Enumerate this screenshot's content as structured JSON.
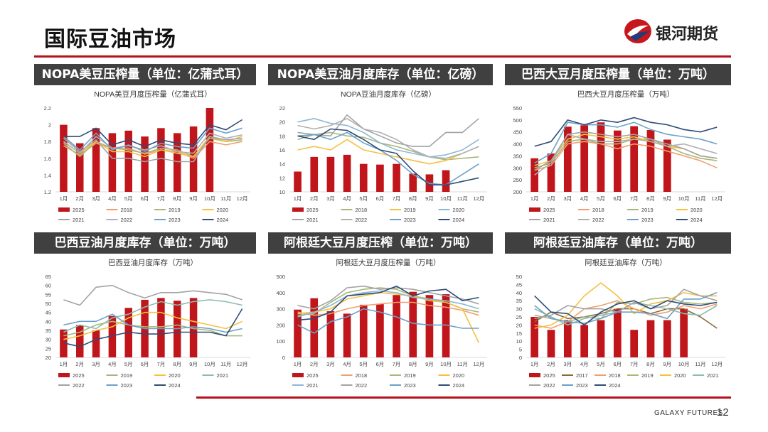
{
  "page": {
    "title": "国际豆油市场",
    "brand": "银河期货",
    "footer_brand": "GALAXY FUTURES",
    "page_number": "12"
  },
  "colors": {
    "accent": "#b5121b",
    "header_bg": "#404040"
  },
  "panels": [
    {
      "id": "nopa-crush",
      "header": "NOPA美豆压榨量（单位：亿蒲式耳）"
    },
    {
      "id": "nopa-oil-stock",
      "header": "NOPA美豆油月度库存（单位：亿磅）"
    },
    {
      "id": "brazil-crush",
      "header": "巴西大豆月度压榨量（单位：万吨）"
    },
    {
      "id": "brazil-oil-stock",
      "header": "巴西豆油月度库存（单位：万吨）"
    },
    {
      "id": "argentina-crush",
      "header": "阿根廷大豆月度压榨（单位：万吨）"
    },
    {
      "id": "argentina-oil-stock",
      "header": "阿根廷豆油库存（单位：万吨）"
    }
  ],
  "chart_data": [
    {
      "type": "bar",
      "title": "NOPA美豆月度压榨量（亿蒲式耳）",
      "categories": [
        "1月",
        "2月",
        "3月",
        "4月",
        "5月",
        "6月",
        "7月",
        "8月",
        "9月",
        "10月",
        "11月",
        "12月"
      ],
      "ylim": [
        1.2,
        2.2
      ],
      "yticks": [
        1.2,
        1.4,
        1.6,
        1.8,
        2.0,
        2.2
      ],
      "legend_cols": 4,
      "bar_series": {
        "name": "2025",
        "values": [
          2.0,
          1.78,
          1.96,
          1.9,
          1.93,
          1.86,
          1.96,
          1.9,
          1.98,
          2.2,
          null,
          null
        ]
      },
      "series": [
        {
          "name": "2018",
          "color": "#f0a070",
          "values": [
            1.75,
            1.64,
            1.78,
            1.72,
            1.72,
            1.65,
            1.7,
            1.68,
            1.6,
            1.8,
            1.76,
            1.8
          ]
        },
        {
          "name": "2019",
          "color": "#a8b878",
          "values": [
            1.78,
            1.62,
            1.8,
            1.72,
            1.7,
            1.66,
            1.72,
            1.7,
            1.62,
            1.84,
            1.8,
            1.82
          ]
        },
        {
          "name": "2020",
          "color": "#f5c040",
          "values": [
            1.8,
            1.66,
            1.8,
            1.68,
            1.68,
            1.62,
            1.7,
            1.66,
            1.62,
            1.86,
            1.8,
            1.86
          ]
        },
        {
          "name": "2021",
          "color": "#a3a3a3",
          "values": [
            1.84,
            1.68,
            1.82,
            1.6,
            1.6,
            1.56,
            1.6,
            1.56,
            1.56,
            1.86,
            1.82,
            1.84
          ]
        },
        {
          "name": "2022",
          "color": "#b0b0b0",
          "values": [
            1.8,
            1.66,
            1.86,
            1.72,
            1.75,
            1.7,
            1.75,
            1.68,
            1.66,
            1.9,
            1.84,
            1.88
          ]
        },
        {
          "name": "2023",
          "color": "#6da0c8",
          "values": [
            1.86,
            1.7,
            1.9,
            1.7,
            1.76,
            1.68,
            1.78,
            1.74,
            1.72,
            1.96,
            1.9,
            1.96
          ]
        },
        {
          "name": "2024",
          "color": "#2e4c78",
          "values": [
            1.86,
            1.86,
            1.96,
            1.76,
            1.82,
            1.74,
            1.82,
            1.78,
            1.76,
            2.0,
            1.94,
            2.06
          ]
        }
      ]
    },
    {
      "type": "bar",
      "title": "NOPA豆油月度库存（亿磅）",
      "categories": [
        "1月",
        "2月",
        "3月",
        "4月",
        "5月",
        "6月",
        "7月",
        "8月",
        "9月",
        "10月",
        "11月",
        "12月"
      ],
      "ylim": [
        10,
        22
      ],
      "yticks": [
        10,
        12,
        14,
        16,
        18,
        20,
        22
      ],
      "legend_cols": 4,
      "bar_series": {
        "name": "2025",
        "values": [
          12.9,
          15.0,
          15.0,
          15.3,
          14.0,
          13.9,
          14.0,
          12.6,
          12.5,
          13.1,
          null,
          null
        ]
      },
      "series": [
        {
          "name": "2018",
          "color": "#a8b878",
          "values": [
            17.5,
            18.2,
            18.5,
            18.0,
            17.8,
            17.0,
            16.5,
            15.8,
            15.0,
            14.6,
            14.8,
            15.0
          ]
        },
        {
          "name": "2019",
          "color": "#f5c040",
          "values": [
            16.0,
            16.5,
            16.0,
            17.5,
            16.0,
            15.5,
            15.0,
            14.5,
            14.0,
            14.5,
            15.5,
            16.5
          ]
        },
        {
          "name": "2020",
          "color": "#8cb8d6",
          "values": [
            20.0,
            20.5,
            19.8,
            19.5,
            18.5,
            17.0,
            16.0,
            15.5,
            15.0,
            15.3,
            16.0,
            17.5
          ]
        },
        {
          "name": "2021",
          "color": "#a3a3a3",
          "values": [
            18.5,
            18.2,
            18.0,
            21.0,
            19.0,
            18.0,
            17.0,
            16.5,
            16.5,
            18.5,
            18.5,
            20.5
          ]
        },
        {
          "name": "2022",
          "color": "#b0b0b0",
          "values": [
            19.5,
            19.0,
            19.5,
            20.5,
            19.0,
            18.5,
            17.5,
            16.0,
            15.0,
            14.8,
            15.5,
            16.5
          ]
        },
        {
          "name": "2023",
          "color": "#6da0c8",
          "values": [
            18.0,
            18.2,
            17.5,
            18.5,
            17.0,
            16.0,
            14.5,
            12.5,
            11.2,
            11.0,
            12.5,
            14.0
          ]
        },
        {
          "name": "2024",
          "color": "#2e4c78",
          "values": [
            18.0,
            17.5,
            19.0,
            18.8,
            17.5,
            16.0,
            15.5,
            13.0,
            11.0,
            11.0,
            11.5,
            12.0
          ]
        }
      ]
    },
    {
      "type": "bar",
      "title": "巴西大豆月度压榨量（万吨）",
      "categories": [
        "1月",
        "2月",
        "3月",
        "4月",
        "5月",
        "6月",
        "7月",
        "8月",
        "9月",
        "10月",
        "11月",
        "12月"
      ],
      "ylim": [
        200,
        550
      ],
      "yticks": [
        200,
        250,
        300,
        350,
        400,
        450,
        500,
        550
      ],
      "legend_cols": 4,
      "bar_series": {
        "name": "2025",
        "values": [
          340,
          360,
          472,
          478,
          490,
          456,
          474,
          458,
          418,
          null,
          null,
          null
        ]
      },
      "series": [
        {
          "name": "2018",
          "color": "#f0a070",
          "values": [
            290,
            310,
            400,
            410,
            400,
            380,
            400,
            390,
            370,
            350,
            330,
            300
          ]
        },
        {
          "name": "2019",
          "color": "#a8b878",
          "values": [
            300,
            320,
            410,
            420,
            400,
            400,
            420,
            420,
            390,
            360,
            340,
            330
          ]
        },
        {
          "name": "2020",
          "color": "#f5c040",
          "values": [
            310,
            330,
            420,
            440,
            430,
            420,
            430,
            410,
            390,
            380,
            350,
            340
          ]
        },
        {
          "name": "2021",
          "color": "#a3a3a3",
          "values": [
            290,
            330,
            440,
            450,
            440,
            430,
            440,
            420,
            400,
            380,
            350,
            340
          ]
        },
        {
          "name": "2022",
          "color": "#b0b0b0",
          "values": [
            270,
            320,
            440,
            420,
            410,
            410,
            420,
            410,
            390,
            400,
            380,
            360
          ]
        },
        {
          "name": "2023",
          "color": "#6da0c8",
          "values": [
            320,
            360,
            490,
            480,
            480,
            470,
            490,
            460,
            440,
            430,
            420,
            400
          ]
        },
        {
          "name": "2024",
          "color": "#2e4c78",
          "values": [
            390,
            410,
            500,
            480,
            500,
            490,
            510,
            490,
            480,
            460,
            450,
            470
          ]
        }
      ]
    },
    {
      "type": "bar",
      "title": "巴西豆油月度库存（万吨）",
      "categories": [
        "1月",
        "2月",
        "3月",
        "4月",
        "5月",
        "6月",
        "7月",
        "8月",
        "9月",
        "10月",
        "11月",
        "12月"
      ],
      "ylim": [
        20,
        65
      ],
      "yticks": [
        20,
        25,
        30,
        35,
        40,
        45,
        50,
        55,
        60,
        65
      ],
      "legend_cols": 4,
      "bar_series": {
        "name": "2025",
        "values": [
          35.5,
          38.0,
          35.0,
          43.0,
          47.5,
          52.0,
          53.0,
          51.5,
          53.0,
          null,
          null,
          null
        ]
      },
      "series": [
        {
          "name": "2019",
          "color": "#a8b878",
          "values": [
            32,
            34,
            38,
            40,
            38,
            37,
            37,
            38,
            36,
            35,
            32,
            32
          ]
        },
        {
          "name": "2020",
          "color": "#f5c040",
          "values": [
            30,
            32,
            35,
            37,
            42,
            45,
            45,
            42,
            40,
            38,
            36,
            40
          ]
        },
        {
          "name": "2021",
          "color": "#8cbcb4",
          "values": [
            34,
            38,
            36,
            42,
            44,
            48,
            51,
            49,
            51,
            52,
            51,
            49
          ]
        },
        {
          "name": "2022",
          "color": "#a3a3a3",
          "values": [
            52,
            49,
            59,
            60,
            56,
            53,
            56,
            56,
            57,
            56,
            55,
            52
          ]
        },
        {
          "name": "2023",
          "color": "#6da0c8",
          "values": [
            38,
            40,
            40,
            44,
            38,
            36,
            36,
            36,
            37,
            36,
            34,
            36
          ]
        },
        {
          "name": "2024",
          "color": "#2e4c78",
          "values": [
            28,
            26,
            30,
            32,
            34,
            33,
            33,
            34,
            34,
            34,
            32,
            47
          ]
        }
      ]
    },
    {
      "type": "bar",
      "title": "阿根廷大豆月度压榨量（万吨）",
      "categories": [
        "1月",
        "2月",
        "3月",
        "4月",
        "5月",
        "6月",
        "7月",
        "8月",
        "9月",
        "10月",
        "11月",
        "12月"
      ],
      "ylim": [
        0,
        500
      ],
      "yticks": [
        0,
        100,
        200,
        300,
        400,
        500
      ],
      "legend_cols": 4,
      "bar_series": {
        "name": "2025",
        "values": [
          295,
          365,
          285,
          270,
          325,
          330,
          385,
          405,
          385,
          390,
          null,
          null
        ]
      },
      "series": [
        {
          "name": "2018",
          "color": "#f0a070",
          "values": [
            280,
            260,
            270,
            300,
            320,
            330,
            340,
            340,
            320,
            310,
            290,
            260
          ]
        },
        {
          "name": "2019",
          "color": "#a8b878",
          "values": [
            260,
            270,
            340,
            400,
            420,
            430,
            420,
            380,
            360,
            340,
            300,
            280
          ]
        },
        {
          "name": "2020",
          "color": "#f5c040",
          "values": [
            270,
            280,
            300,
            360,
            380,
            400,
            390,
            380,
            350,
            340,
            300,
            90
          ]
        },
        {
          "name": "2021",
          "color": "#8cb8d6",
          "values": [
            250,
            280,
            320,
            380,
            400,
            410,
            400,
            370,
            360,
            350,
            330,
            300
          ]
        },
        {
          "name": "2022",
          "color": "#a3a3a3",
          "values": [
            320,
            300,
            350,
            430,
            440,
            420,
            430,
            420,
            400,
            380,
            360,
            330
          ]
        },
        {
          "name": "2023",
          "color": "#6da0c8",
          "values": [
            200,
            150,
            220,
            250,
            300,
            280,
            250,
            210,
            200,
            200,
            180,
            180
          ]
        },
        {
          "name": "2024",
          "color": "#2e4c78",
          "values": [
            230,
            240,
            280,
            380,
            390,
            400,
            440,
            380,
            410,
            420,
            350,
            370
          ]
        }
      ]
    },
    {
      "type": "bar",
      "title": "阿根廷豆油库存（万吨）",
      "categories": [
        "1月",
        "2月",
        "3月",
        "4月",
        "5月",
        "6月",
        "7月",
        "8月",
        "9月",
        "10月",
        "11月",
        "12月"
      ],
      "ylim": [
        0,
        50
      ],
      "yticks": [
        0,
        5,
        10,
        15,
        20,
        25,
        30,
        35,
        40,
        45,
        50
      ],
      "legend_cols": 6,
      "bar_series": {
        "name": "2025",
        "values": [
          25,
          17,
          23,
          20,
          23,
          30,
          17,
          23,
          23,
          30,
          null,
          null
        ]
      },
      "series": [
        {
          "name": "2017",
          "color": "#8b6a3a",
          "values": [
            22,
            28,
            24,
            25,
            27,
            30,
            30,
            27,
            30,
            30,
            25,
            18
          ]
        },
        {
          "name": "2018",
          "color": "#f0a070",
          "values": [
            20,
            18,
            22,
            30,
            32,
            35,
            30,
            26,
            28,
            32,
            30,
            33
          ]
        },
        {
          "name": "2019",
          "color": "#a8b878",
          "values": [
            26,
            24,
            22,
            25,
            24,
            34,
            33,
            36,
            37,
            34,
            33,
            34
          ]
        },
        {
          "name": "2020",
          "color": "#f5c040",
          "values": [
            18,
            20,
            26,
            38,
            46,
            38,
            27,
            33,
            35,
            40,
            38,
            38
          ]
        },
        {
          "name": "2021",
          "color": "#8cbcb4",
          "values": [
            30,
            25,
            20,
            24,
            26,
            28,
            34,
            32,
            30,
            27,
            26,
            32
          ]
        },
        {
          "name": "2022",
          "color": "#a3a3a3",
          "values": [
            24,
            26,
            32,
            30,
            30,
            28,
            34,
            30,
            32,
            42,
            38,
            35
          ]
        },
        {
          "name": "2023",
          "color": "#6da0c8",
          "values": [
            32,
            24,
            22,
            21,
            24,
            28,
            28,
            27,
            24,
            36,
            36,
            40
          ]
        },
        {
          "name": "2024",
          "color": "#2e4c78",
          "values": [
            38,
            28,
            27,
            20,
            28,
            33,
            35,
            30,
            35,
            33,
            32,
            34
          ]
        }
      ]
    }
  ]
}
